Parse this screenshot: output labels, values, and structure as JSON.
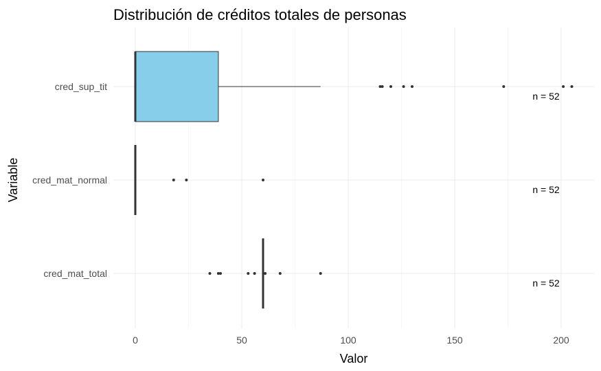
{
  "chart_data": {
    "type": "boxplot",
    "title": "Distribución de créditos totales de personas",
    "xlabel": "Valor",
    "ylabel": "Variable",
    "xlim": [
      -10,
      215
    ],
    "xticks": [
      0,
      50,
      100,
      150,
      200
    ],
    "grid": true,
    "orientation": "horizontal",
    "categories": [
      "cred_sup_tit",
      "cred_mat_normal",
      "cred_mat_total"
    ],
    "boxes": [
      {
        "name": "cred_sup_tit",
        "min": 0,
        "q1": 0,
        "median": 0,
        "q3": 39,
        "whisker_high": 87,
        "outliers": [
          115,
          116,
          120,
          126,
          130,
          173,
          201,
          205
        ],
        "fill": "#87CEEB",
        "annotation": "n = 52"
      },
      {
        "name": "cred_mat_normal",
        "min": 0,
        "q1": 0,
        "median": 0,
        "q3": 0,
        "whisker_high": 0,
        "outliers": [
          18,
          24,
          60
        ],
        "fill": "#87CEEB",
        "annotation": "n = 52"
      },
      {
        "name": "cred_mat_total",
        "min": 60,
        "q1": 60,
        "median": 60,
        "q3": 60,
        "whisker_high": 60,
        "outliers": [
          35,
          39,
          40,
          53,
          56,
          61,
          68,
          87
        ],
        "fill": "#87CEEB",
        "annotation": "n = 52"
      }
    ]
  }
}
